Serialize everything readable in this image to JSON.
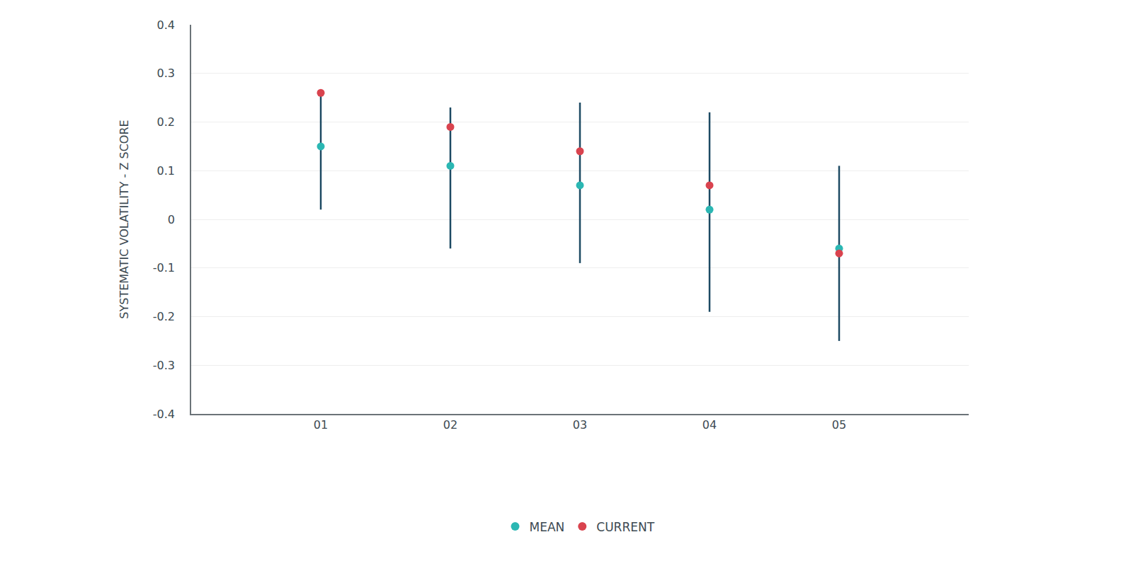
{
  "chart_data": {
    "type": "scatter",
    "y_label": "SYSTEMATIC VOLATILITY - Z SCORE",
    "categories": [
      "01",
      "02",
      "03",
      "04",
      "05"
    ],
    "series": [
      {
        "name": "MEAN",
        "color": "#2bb7b3",
        "marker": "circle",
        "values": [
          0.15,
          0.11,
          0.07,
          0.02,
          -0.06
        ]
      },
      {
        "name": "CURRENT",
        "color": "#d9434e",
        "marker": "circle",
        "values": [
          0.26,
          0.19,
          0.14,
          0.07,
          -0.07
        ]
      }
    ],
    "error_range": {
      "color": "#1d4a63",
      "low": [
        0.02,
        -0.06,
        -0.09,
        -0.19,
        -0.25
      ],
      "high": [
        0.26,
        0.23,
        0.24,
        0.22,
        0.11
      ]
    },
    "ylim": [
      -0.4,
      0.4
    ],
    "yticks": [
      -0.4,
      -0.3,
      -0.2,
      -0.1,
      0,
      0.1,
      0.2,
      0.3,
      0.4
    ],
    "grid": true,
    "legend": "bottom"
  }
}
